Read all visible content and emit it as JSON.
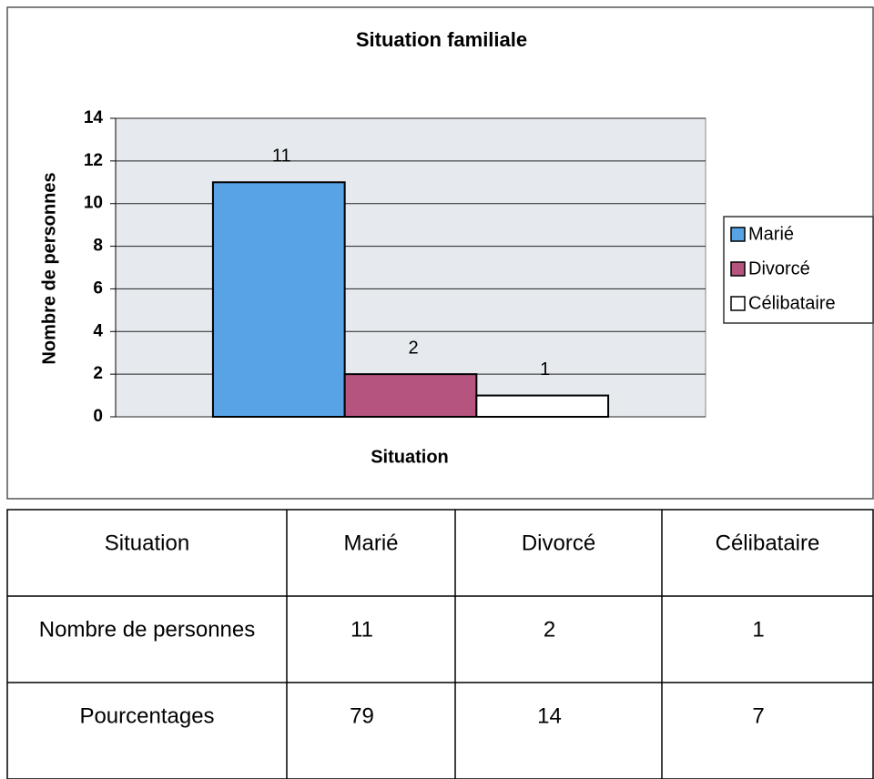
{
  "chart_data": {
    "type": "bar",
    "title": "Situation familiale",
    "x_label": "Situation",
    "y_label": "Nombre de personnes",
    "categories": [
      null
    ],
    "series": [
      {
        "name": "Marié",
        "color": "#57a3e6",
        "values": [
          11
        ]
      },
      {
        "name": "Divorcé",
        "color": "#b5557f",
        "values": [
          2
        ]
      },
      {
        "name": "Célibataire",
        "color": "#ffffff",
        "values": [
          1
        ]
      }
    ],
    "ylim": [
      0,
      14
    ],
    "yticks": [
      0,
      2,
      4,
      6,
      8,
      10,
      12,
      14
    ],
    "grid": true,
    "legend": "right"
  },
  "table": {
    "header": [
      "Situation",
      "Marié",
      "Divorcé",
      "Célibataire"
    ],
    "rows": [
      [
        "Nombre de personnes",
        "11",
        "2",
        "1"
      ],
      [
        "Pourcentages",
        "79",
        "14",
        "7"
      ]
    ]
  }
}
